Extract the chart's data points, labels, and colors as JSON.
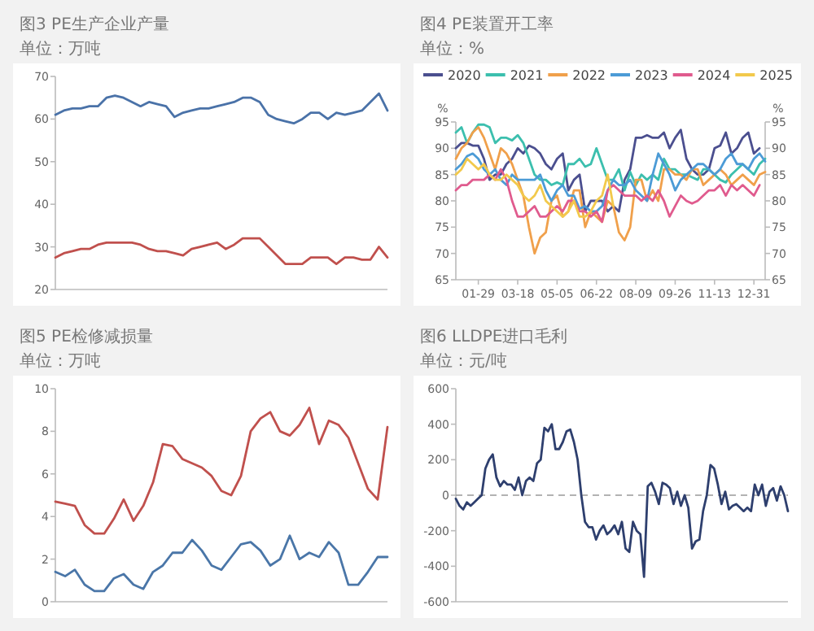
{
  "chart_data": [
    {
      "type": "line",
      "title": "图3 PE生产企业产量",
      "subtitle": "单位：万吨",
      "categories": [
        null,
        null,
        null,
        null,
        null,
        null,
        null,
        null,
        null,
        null,
        null,
        null,
        null,
        null,
        null,
        null,
        null,
        null,
        null,
        null,
        null,
        null,
        null,
        null,
        null,
        null,
        null,
        null,
        null,
        null,
        null,
        null,
        null,
        null,
        null,
        null,
        null,
        null,
        null,
        null
      ],
      "series": [
        {
          "color": "#4a72a8",
          "values": [
            61,
            62,
            62.5,
            62.5,
            63,
            63,
            65,
            65.5,
            65,
            64,
            63,
            64,
            63.5,
            63,
            60.5,
            61.5,
            62,
            62.5,
            62.5,
            63,
            63.5,
            64,
            65,
            65,
            64,
            61,
            60,
            59.5,
            59,
            60,
            61.5,
            61.5,
            60,
            61.5,
            61,
            61.5,
            62,
            64,
            66,
            62
          ]
        },
        {
          "color": "#c0504d",
          "values": [
            27.5,
            28.5,
            29,
            29.5,
            29.5,
            30.5,
            31,
            31,
            31,
            31,
            30.5,
            29.5,
            29,
            29,
            28.5,
            28,
            29.5,
            30,
            30.5,
            31,
            29.5,
            30.5,
            32,
            32,
            32,
            30,
            28,
            26,
            26,
            26,
            27.5,
            27.5,
            27.5,
            26,
            27.5,
            27.5,
            27,
            27,
            30,
            27.5
          ]
        }
      ],
      "ylim": [
        20,
        70
      ],
      "yticks": [
        20,
        30,
        40,
        50,
        60,
        70
      ]
    },
    {
      "type": "line",
      "title": "图4 PE装置开工率",
      "subtitle": "单位：%",
      "ylabel": "%",
      "y2label": "%",
      "categories": [
        null,
        null,
        null,
        null,
        "01-29",
        null,
        null,
        null,
        null,
        null,
        null,
        "03-18",
        null,
        null,
        null,
        null,
        null,
        null,
        "05-05",
        null,
        null,
        null,
        null,
        null,
        null,
        "06-22",
        null,
        null,
        null,
        null,
        null,
        null,
        "08-09",
        null,
        null,
        null,
        null,
        null,
        null,
        "09-26",
        null,
        null,
        null,
        null,
        null,
        null,
        "11-13",
        null,
        null,
        null,
        null,
        null,
        null,
        "12-31",
        null,
        null
      ],
      "series": [
        {
          "name": "2020",
          "color": "#4b4f8f",
          "values": [
            90,
            91,
            91,
            90.5,
            90.5,
            88,
            84,
            85,
            85,
            87,
            88,
            90,
            89,
            90.5,
            90,
            89,
            87,
            86,
            88,
            89,
            82,
            84,
            85,
            78,
            80,
            80,
            80,
            78,
            79,
            78,
            84,
            86,
            92,
            92,
            92.5,
            92,
            92,
            93,
            90,
            92,
            93.5,
            88,
            86,
            85,
            85,
            86,
            90,
            90.5,
            93,
            89,
            90,
            92,
            93,
            89,
            90,
            null
          ]
        },
        {
          "name": "2021",
          "color": "#3cbfae",
          "values": [
            93,
            94,
            91,
            93,
            94.5,
            94.5,
            94,
            91,
            92,
            92,
            91.5,
            92.5,
            91,
            88,
            85,
            84,
            84,
            83,
            83.5,
            83,
            87,
            87,
            88,
            86.5,
            87,
            90,
            87,
            84,
            84,
            86,
            82,
            85.5,
            83,
            85,
            84,
            85,
            84,
            88,
            86,
            86,
            85,
            85,
            84.5,
            84,
            86,
            86,
            85,
            84,
            83.5,
            85,
            86,
            87,
            86,
            85,
            87,
            88
          ]
        },
        {
          "name": "2022",
          "color": "#f0a04b",
          "values": [
            88,
            90,
            91,
            93,
            94,
            92,
            89,
            86,
            90,
            89,
            87,
            84,
            81,
            75,
            70,
            73,
            74,
            80,
            81,
            77,
            78,
            82,
            82,
            75,
            78,
            77,
            76,
            80,
            79,
            74,
            72.5,
            75,
            84,
            84,
            80,
            82,
            80,
            86,
            86,
            85,
            85,
            84,
            86,
            86,
            83,
            84,
            85,
            86,
            85,
            83,
            84,
            85,
            84,
            83,
            85,
            85.5
          ]
        },
        {
          "name": "2023",
          "color": "#4c9bd6",
          "values": [
            86,
            87,
            88.5,
            89,
            88,
            86,
            85,
            86,
            84,
            83,
            85,
            84,
            84,
            84,
            84,
            85,
            82,
            80,
            82,
            83,
            81,
            81,
            78.5,
            79,
            78,
            78,
            79,
            82,
            84,
            83,
            83,
            84,
            82,
            81,
            80,
            85,
            89,
            87,
            85,
            82,
            84,
            85,
            86,
            87,
            87,
            86,
            85,
            86,
            88,
            89,
            87,
            87,
            86,
            88,
            89,
            87.5
          ]
        },
        {
          "name": "2024",
          "color": "#e05b8e",
          "values": [
            82,
            83,
            83,
            84,
            84,
            84,
            85,
            84,
            86,
            84,
            80,
            77,
            77,
            78,
            79,
            77,
            77,
            78,
            79,
            78,
            80,
            80,
            78,
            78,
            77,
            78,
            76,
            82,
            83,
            82,
            81,
            81,
            81,
            80,
            81,
            80,
            82,
            80,
            77,
            79,
            81,
            80,
            79.5,
            80,
            81,
            82,
            82,
            83,
            81,
            83,
            82,
            83,
            82,
            81,
            83,
            null
          ]
        },
        {
          "name": "2025",
          "color": "#f2c94c",
          "values": [
            85,
            86,
            88,
            87,
            86,
            87,
            85,
            84,
            84,
            85,
            84,
            83,
            81,
            80,
            81,
            83,
            80,
            79,
            78,
            77,
            78,
            80,
            77,
            77,
            78,
            80,
            81,
            85,
            79,
            null,
            null,
            null,
            null,
            null,
            null,
            null,
            null,
            null,
            null,
            null,
            null,
            null,
            null,
            null,
            null,
            null,
            null,
            null,
            null,
            null,
            null,
            null,
            null,
            null,
            null,
            null
          ]
        }
      ],
      "ylim": [
        65,
        95
      ],
      "yticks": [
        65,
        70,
        75,
        80,
        85,
        90,
        95
      ],
      "y2lim": [
        65,
        95
      ],
      "y2ticks": [
        65,
        70,
        75,
        80,
        85,
        90,
        95
      ],
      "legend": "top"
    },
    {
      "type": "line",
      "title": "图5 PE检修减损量",
      "subtitle": "单位：万吨",
      "categories": [
        null,
        null,
        null,
        null,
        null,
        null,
        null,
        null,
        null,
        null,
        null,
        null,
        null,
        null,
        null,
        null,
        null,
        null,
        null,
        null,
        null,
        null,
        null,
        null,
        null,
        null,
        null,
        null,
        null,
        null,
        null,
        null,
        null,
        null,
        null
      ],
      "series": [
        {
          "color": "#c0504d",
          "values": [
            4.7,
            4.6,
            4.5,
            3.6,
            3.2,
            3.2,
            3.9,
            4.8,
            3.8,
            4.5,
            5.6,
            7.4,
            7.3,
            6.7,
            6.5,
            6.3,
            5.9,
            5.2,
            5.0,
            5.9,
            8.0,
            8.6,
            8.9,
            8.0,
            7.8,
            8.3,
            9.1,
            7.4,
            8.5,
            8.3,
            7.7,
            6.5,
            5.3,
            4.8,
            8.2
          ]
        },
        {
          "color": "#4a76a8",
          "values": [
            1.4,
            1.2,
            1.5,
            0.8,
            0.5,
            0.5,
            1.1,
            1.3,
            0.8,
            0.6,
            1.4,
            1.7,
            2.3,
            2.3,
            2.9,
            2.4,
            1.7,
            1.5,
            2.1,
            2.7,
            2.8,
            2.4,
            1.7,
            2.0,
            3.1,
            2.0,
            2.3,
            2.1,
            2.8,
            2.3,
            0.8,
            0.8,
            1.4,
            2.1,
            2.1
          ]
        }
      ],
      "ylim": [
        0,
        10
      ],
      "yticks": [
        0,
        2,
        4,
        6,
        8,
        10
      ]
    },
    {
      "type": "line",
      "title": "图6 LLDPE进口毛利",
      "subtitle": "单位：元/吨",
      "categories": [
        null,
        null,
        null,
        null,
        null,
        null,
        null,
        null,
        null,
        null,
        null,
        null,
        null,
        null,
        null,
        null,
        null,
        null,
        null,
        null,
        null,
        null,
        null,
        null,
        null,
        null,
        null,
        null,
        null,
        null,
        null,
        null,
        null,
        null,
        null,
        null,
        null,
        null,
        null,
        null,
        null,
        null,
        null,
        null,
        null,
        null,
        null,
        null,
        null,
        null,
        null,
        null,
        null,
        null,
        null,
        null,
        null,
        null,
        null,
        null,
        null,
        null,
        null,
        null,
        null,
        null,
        null,
        null,
        null,
        null,
        null,
        null,
        null,
        null,
        null,
        null,
        null,
        null,
        null,
        null,
        null,
        null,
        null,
        null,
        null,
        null,
        null,
        null,
        null,
        null,
        null
      ],
      "series": [
        {
          "color": "#2e3f6e",
          "values": [
            -20,
            -60,
            -80,
            -40,
            -60,
            -40,
            -20,
            0,
            150,
            200,
            230,
            100,
            50,
            80,
            60,
            60,
            30,
            100,
            0,
            80,
            100,
            80,
            180,
            200,
            380,
            360,
            400,
            260,
            260,
            300,
            360,
            370,
            300,
            200,
            0,
            -150,
            -180,
            -180,
            -250,
            -200,
            -170,
            -220,
            -200,
            -170,
            -220,
            -150,
            -300,
            -320,
            -150,
            -200,
            -220,
            -460,
            50,
            70,
            20,
            -50,
            70,
            60,
            40,
            -50,
            20,
            -60,
            0,
            -70,
            -300,
            -260,
            -250,
            -90,
            0,
            170,
            150,
            60,
            -50,
            20,
            -80,
            -60,
            -50,
            -70,
            -90,
            -70,
            -90,
            60,
            0,
            60,
            -60,
            20,
            40,
            -30,
            50,
            0,
            -90
          ]
        }
      ],
      "ylim": [
        -600,
        600
      ],
      "yticks": [
        -600,
        -400,
        -200,
        0,
        200,
        400,
        600
      ],
      "ref_lines": [
        {
          "axis": "y",
          "value": 0,
          "color": "#999999",
          "line_style": "dashed"
        }
      ]
    }
  ]
}
